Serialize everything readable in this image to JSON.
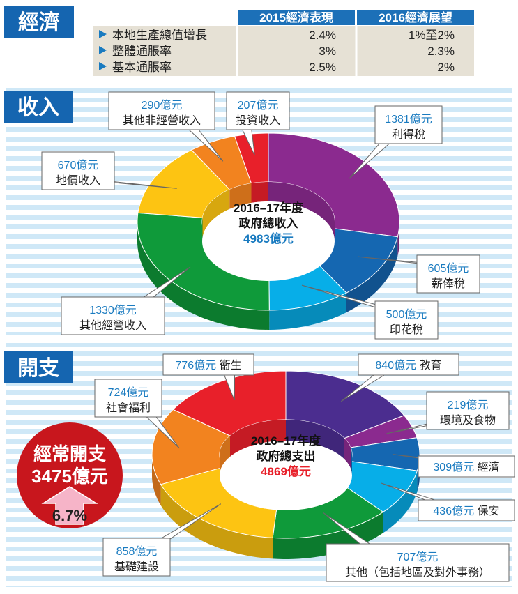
{
  "economy": {
    "title": "經濟",
    "headers": [
      "",
      "2015經濟表現",
      "2016經濟展望"
    ],
    "rows": [
      {
        "label": "本地生產總值增長",
        "v2015": "2.4%",
        "v2016": "1%至2%"
      },
      {
        "label": "整體通脹率",
        "v2015": "3%",
        "v2016": "2.3%"
      },
      {
        "label": "基本通脹率",
        "v2015": "2.5%",
        "v2016": "2%"
      }
    ]
  },
  "income": {
    "title": "收入"
  },
  "expenditure": {
    "title": "開支"
  },
  "recurrent": {
    "line1": "經常開支",
    "line2": "3475億元",
    "growth": "6.7%"
  },
  "colors": {
    "blue_header": "#1565b0",
    "stripe": "#cfe8f7",
    "table_header": "#1c70b8",
    "table_row": "#e6e1d5",
    "purple": "#8b2a8f",
    "blue": "#1567b1",
    "cyan": "#07aee8",
    "green": "#0f9a3a",
    "yellow": "#fdc412",
    "orange": "#f2831f",
    "red": "#e8202a",
    "indigo": "#4b2d8f",
    "value_text": "#1a7bc0",
    "badge_red": "#c8161d"
  },
  "chart_data": [
    {
      "type": "pie",
      "center": {
        "line1": "2016–17年度",
        "line2": "政府總收入",
        "line3": "4983億元"
      },
      "slices": [
        {
          "value": 1381,
          "value_label": "1381億元",
          "name": "利得稅",
          "color": "#8b2a8f"
        },
        {
          "value": 605,
          "value_label": "605億元",
          "name": "薪俸稅",
          "color": "#1567b1"
        },
        {
          "value": 500,
          "value_label": "500億元",
          "name": "印花稅",
          "color": "#07aee8"
        },
        {
          "value": 1330,
          "value_label": "1330億元",
          "name": "其他經營收入",
          "color": "#0f9a3a"
        },
        {
          "value": 670,
          "value_label": "670億元",
          "name": "地價收入",
          "color": "#fdc412"
        },
        {
          "value": 290,
          "value_label": "290億元",
          "name": "其他非經營收入",
          "color": "#f2831f"
        },
        {
          "value": 207,
          "value_label": "207億元",
          "name": "投資收入",
          "color": "#e8202a"
        }
      ]
    },
    {
      "type": "pie",
      "center": {
        "line1": "2016–17年度",
        "line2": "政府總支出",
        "line3": "4869億元"
      },
      "slices": [
        {
          "value": 840,
          "value_label": "840億元",
          "name": "教育",
          "color": "#4b2d8f"
        },
        {
          "value": 219,
          "value_label": "219億元",
          "name": "環境及食物",
          "color": "#8b2a8f"
        },
        {
          "value": 309,
          "value_label": "309億元",
          "name": "經濟",
          "color": "#1567b1"
        },
        {
          "value": 436,
          "value_label": "436億元",
          "name": "保安",
          "color": "#07aee8"
        },
        {
          "value": 707,
          "value_label": "707億元",
          "name": "其他（包括地區及對外事務）",
          "color": "#0f9a3a"
        },
        {
          "value": 858,
          "value_label": "858億元",
          "name": "基礎建設",
          "color": "#fdc412"
        },
        {
          "value": 724,
          "value_label": "724億元",
          "name": "社會福利",
          "color": "#f2831f"
        },
        {
          "value": 776,
          "value_label": "776億元",
          "name": "衞生",
          "color": "#e8202a"
        }
      ]
    }
  ]
}
